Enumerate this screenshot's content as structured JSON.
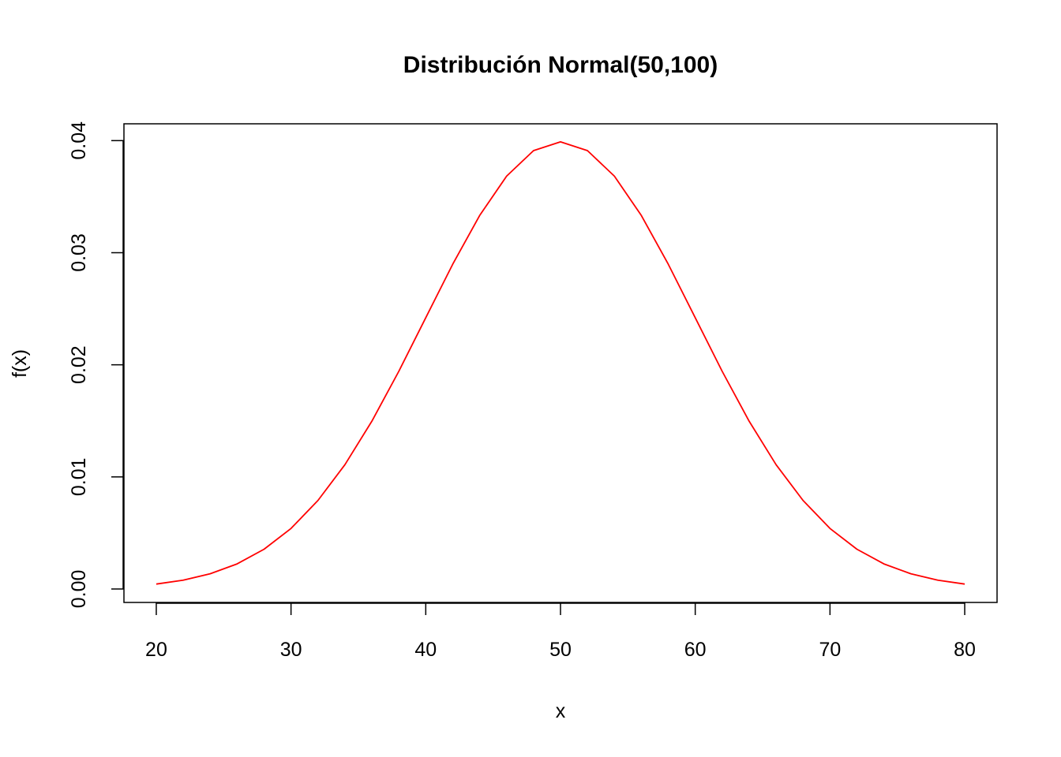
{
  "chart_data": {
    "type": "line",
    "title": "Distribución Normal(50,100)",
    "xlabel": "x",
    "ylabel": "f(x)",
    "xlim": [
      17.6,
      82.4
    ],
    "ylim": [
      -0.0012,
      0.0415
    ],
    "xticks": [
      20,
      30,
      40,
      50,
      60,
      70,
      80
    ],
    "yticks": [
      0.0,
      0.01,
      0.02,
      0.03,
      0.04
    ],
    "xtick_labels": [
      "20",
      "30",
      "40",
      "50",
      "60",
      "70",
      "80"
    ],
    "ytick_labels": [
      "0.00",
      "0.01",
      "0.02",
      "0.03",
      "0.04"
    ],
    "grid": false,
    "series": [
      {
        "color": "#ff0000",
        "x": [
          20,
          22,
          24,
          26,
          28,
          30,
          32,
          34,
          36,
          38,
          40,
          42,
          44,
          46,
          48,
          50,
          52,
          54,
          56,
          58,
          60,
          62,
          64,
          66,
          68,
          70,
          72,
          74,
          76,
          78,
          80
        ],
        "y": [
          0.00044,
          0.00079,
          0.00136,
          0.00224,
          0.00355,
          0.0054,
          0.0079,
          0.01109,
          0.01497,
          0.01942,
          0.0242,
          0.02897,
          0.03332,
          0.03683,
          0.03911,
          0.03989,
          0.03911,
          0.03683,
          0.03332,
          0.02897,
          0.0242,
          0.01942,
          0.01497,
          0.01109,
          0.0079,
          0.0054,
          0.00355,
          0.00224,
          0.00136,
          0.00079,
          0.00044
        ]
      }
    ]
  }
}
